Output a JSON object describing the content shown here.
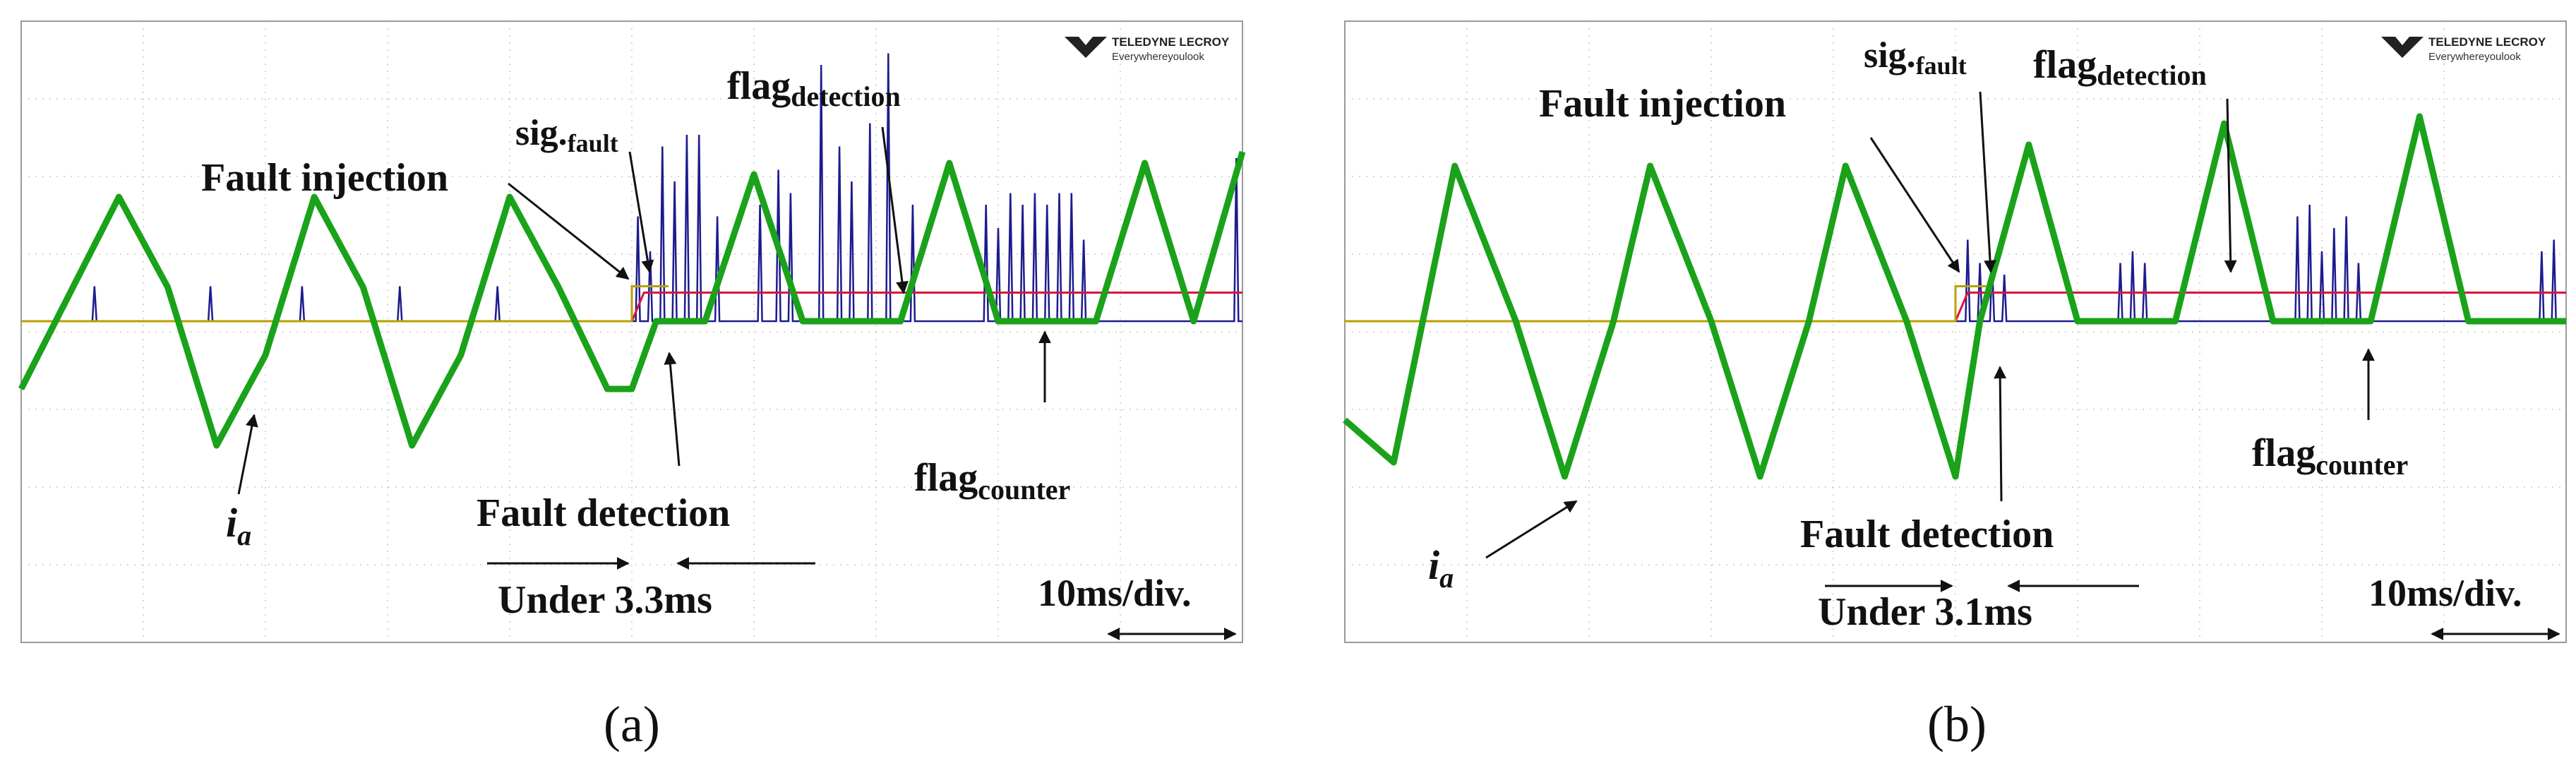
{
  "brand": {
    "logo_line1": "TELEDYNE LECROY",
    "logo_line2": "Everywhereyoulook"
  },
  "colors": {
    "ia": "#1aa21a",
    "flag_detection": "#d8163c",
    "flag_counter": "#1c1c8e",
    "sig_fault": "#b8a000",
    "grid": "#c8c8c8",
    "frame": "#9a9a9a",
    "annotation": "#111111"
  },
  "chart_data": [
    {
      "type": "line",
      "panel": "(a)",
      "timebase": "10ms/div.",
      "xlim": [
        0,
        100
      ],
      "fault_time": 50,
      "detection_delay": "Under 3.3ms",
      "series": [
        {
          "name": "i_a",
          "description": "motor phase current, sinusoid with period 16 ms before fault, negative half-waves clipped after fault",
          "x": [
            0,
            4,
            8,
            12,
            16,
            20,
            24,
            28,
            32,
            36,
            40,
            44,
            48,
            50,
            52,
            56,
            60,
            64,
            68,
            72,
            76,
            80,
            84,
            88,
            92,
            96,
            100
          ],
          "y": [
            -0.6,
            0.25,
            1.1,
            0.3,
            -1.1,
            -0.3,
            1.1,
            0.3,
            -1.1,
            -0.3,
            1.1,
            0.3,
            -0.6,
            -0.6,
            0.0,
            0.0,
            1.3,
            0.0,
            0.0,
            0.0,
            1.4,
            0.0,
            0.0,
            0.0,
            1.4,
            0.0,
            1.5
          ]
        },
        {
          "name": "flag_detection",
          "description": "logic flag, 0 before fault, steps high at fault detection",
          "x": [
            0,
            50,
            51,
            100
          ],
          "y": [
            0,
            0,
            0.45,
            0.45
          ]
        },
        {
          "name": "flag_counter",
          "description": "spikes during clipped half-waves",
          "spike_times": [
            6,
            15.5,
            23,
            31,
            39,
            50.5,
            51.5,
            52.5,
            53.5,
            54.5,
            55.5,
            57,
            60.5,
            62,
            63,
            65.5,
            67,
            68,
            69.5,
            71,
            73,
            79,
            80,
            81,
            82,
            83,
            84,
            85,
            86,
            87,
            99.5
          ],
          "spike_heights": [
            0.3,
            0.3,
            0.3,
            0.3,
            0.3,
            0.9,
            0.6,
            1.5,
            1.2,
            1.6,
            1.6,
            0.9,
            1.0,
            1.3,
            1.1,
            2.2,
            1.5,
            1.2,
            1.7,
            2.3,
            1.0,
            1.0,
            0.8,
            1.1,
            1.0,
            1.1,
            1.0,
            1.1,
            1.1,
            0.7,
            1.4
          ]
        },
        {
          "name": "sig_fault",
          "description": "fault injection signal",
          "x": [
            0,
            50,
            50,
            53
          ],
          "y": [
            0,
            0,
            0.55,
            0.55
          ]
        }
      ],
      "annotations": {
        "fault_injection": "Fault injection",
        "sig_fault_main": "sig.",
        "sig_fault_sub": "fault",
        "flag_detection_main": "flag",
        "flag_detection_sub": "detection",
        "flag_counter_main": "flag",
        "flag_counter_sub": "counter",
        "ia_main": "i",
        "ia_sub": "a",
        "fault_detection": "Fault detection",
        "under": "Under 3.3ms",
        "timebase": "10ms/div."
      },
      "caption": "(a)"
    },
    {
      "type": "line",
      "panel": "(b)",
      "timebase": "10ms/div.",
      "xlim": [
        0,
        100
      ],
      "fault_time": 50,
      "detection_delay": "Under 3.1ms",
      "series": [
        {
          "name": "i_a",
          "description": "motor phase current, larger amplitude sinusoid with period 16 ms before fault, negative half-waves clipped after fault",
          "x": [
            0,
            4,
            9,
            14,
            18,
            22,
            25,
            30,
            34,
            38,
            41,
            46,
            50,
            52,
            56,
            60,
            64,
            68,
            72,
            76,
            80,
            84,
            88,
            92,
            96,
            100
          ],
          "y": [
            -1.4,
            -2.0,
            2.2,
            0.0,
            -2.2,
            0.0,
            2.2,
            0.0,
            -2.2,
            0.0,
            2.2,
            0.0,
            -2.2,
            0.0,
            2.5,
            0.0,
            0.0,
            0.0,
            2.8,
            0.0,
            0.0,
            0.0,
            2.9,
            0.0,
            0.0,
            0.0
          ]
        },
        {
          "name": "flag_detection",
          "description": "logic flag, 0 before fault, steps high at fault detection",
          "x": [
            0,
            50,
            51,
            100
          ],
          "y": [
            0,
            0,
            0.45,
            0.45
          ]
        },
        {
          "name": "flag_counter",
          "description": "spikes during clipped half-waves",
          "spike_times": [
            51,
            52,
            53,
            54,
            63.5,
            64.5,
            65.5,
            78,
            79,
            80,
            81,
            82,
            83,
            98,
            99
          ],
          "spike_heights": [
            0.7,
            0.5,
            0.5,
            0.4,
            0.5,
            0.6,
            0.5,
            0.9,
            1.0,
            0.6,
            0.8,
            0.9,
            0.5,
            0.6,
            0.7
          ]
        },
        {
          "name": "sig_fault",
          "description": "fault injection signal",
          "x": [
            0,
            50,
            50,
            52.5
          ],
          "y": [
            0,
            0,
            0.55,
            0.55
          ]
        }
      ],
      "annotations": {
        "fault_injection": "Fault injection",
        "sig_fault_main": "sig.",
        "sig_fault_sub": "fault",
        "flag_detection_main": "flag",
        "flag_detection_sub": "detection",
        "flag_counter_main": "flag",
        "flag_counter_sub": "counter",
        "ia_main": "i",
        "ia_sub": "a",
        "fault_detection": "Fault detection",
        "under": "Under 3.1ms",
        "timebase": "10ms/div."
      },
      "caption": "(b)"
    }
  ]
}
